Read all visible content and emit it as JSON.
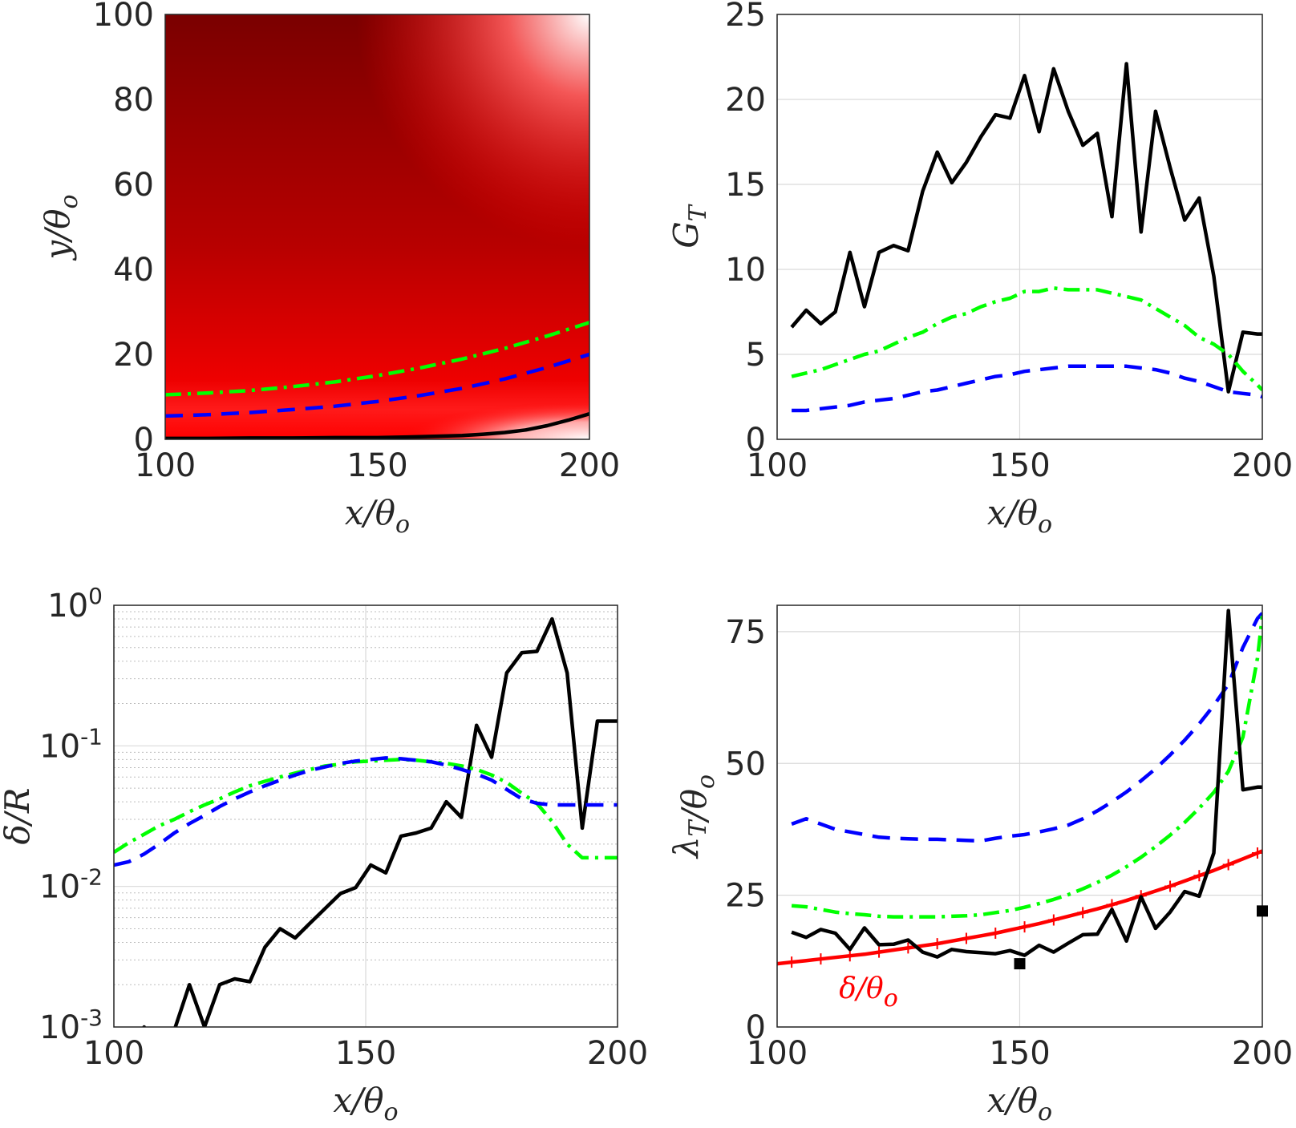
{
  "chart_data": [
    {
      "panel": "top-left",
      "type": "heatmap",
      "xlabel": "x/θo",
      "ylabel": "y/θo",
      "xlim": [
        100,
        200
      ],
      "ylim": [
        0,
        100
      ],
      "xticks": [
        100,
        150,
        200
      ],
      "yticks": [
        0,
        20,
        40,
        60,
        80,
        100
      ],
      "grid": false,
      "colormap": [
        "#ffffff",
        "#ff0000",
        "#7a0000"
      ],
      "series": [
        {
          "color": "#000000",
          "style": "solid",
          "x": [
            100,
            110,
            120,
            130,
            140,
            150,
            160,
            170,
            175,
            180,
            185,
            190,
            195,
            200
          ],
          "y": [
            0.2,
            0.2,
            0.3,
            0.3,
            0.4,
            0.4,
            0.6,
            0.9,
            1.2,
            1.6,
            2.2,
            3.2,
            4.5,
            6.0
          ]
        },
        {
          "color": "#0000ff",
          "style": "dash",
          "x": [
            100,
            110,
            120,
            130,
            140,
            150,
            160,
            170,
            180,
            190,
            200
          ],
          "y": [
            5.5,
            5.8,
            6.3,
            7.0,
            7.8,
            8.9,
            10.3,
            12.0,
            14.2,
            16.9,
            20.0
          ]
        },
        {
          "color": "#00ff00",
          "style": "dashdot",
          "x": [
            100,
            110,
            120,
            130,
            140,
            150,
            160,
            170,
            180,
            190,
            200
          ],
          "y": [
            10.5,
            10.9,
            11.5,
            12.4,
            13.5,
            15.0,
            16.8,
            18.9,
            21.4,
            24.3,
            27.5
          ]
        }
      ]
    },
    {
      "panel": "top-right",
      "type": "line",
      "xlabel": "x/θo",
      "ylabel": "GT",
      "xlim": [
        100,
        200
      ],
      "ylim": [
        0,
        25
      ],
      "xticks": [
        100,
        150,
        200
      ],
      "yticks": [
        0,
        5,
        10,
        15,
        20,
        25
      ],
      "grid": true,
      "series": [
        {
          "color": "#000000",
          "style": "solid",
          "x": [
            103,
            106,
            109,
            112,
            115,
            118,
            121,
            124,
            127,
            130,
            133,
            136,
            139,
            142,
            145,
            148,
            151,
            154,
            157,
            160,
            163,
            166,
            169,
            172,
            175,
            178,
            181,
            184,
            187,
            190,
            193,
            196,
            199,
            200
          ],
          "y": [
            6.6,
            7.6,
            6.8,
            7.5,
            11.0,
            7.8,
            11.0,
            11.4,
            11.1,
            14.6,
            16.9,
            15.1,
            16.3,
            17.8,
            19.1,
            18.9,
            21.4,
            18.1,
            21.8,
            19.3,
            17.3,
            18.0,
            13.1,
            22.1,
            12.2,
            19.3,
            16.0,
            12.9,
            14.2,
            9.6,
            2.8,
            6.3,
            6.2,
            6.2
          ]
        },
        {
          "color": "#00ff00",
          "style": "dashdot",
          "x": [
            103,
            106,
            109,
            112,
            115,
            118,
            121,
            124,
            127,
            130,
            133,
            136,
            139,
            142,
            145,
            148,
            151,
            154,
            157,
            160,
            163,
            166,
            169,
            172,
            175,
            178,
            181,
            184,
            187,
            190,
            193,
            196,
            199,
            200
          ],
          "y": [
            3.7,
            3.9,
            4.1,
            4.4,
            4.7,
            5.0,
            5.2,
            5.6,
            6.0,
            6.3,
            6.8,
            7.2,
            7.4,
            7.8,
            8.1,
            8.3,
            8.7,
            8.7,
            8.9,
            8.8,
            8.8,
            8.8,
            8.6,
            8.4,
            8.2,
            7.7,
            7.2,
            6.7,
            6.0,
            5.6,
            5.0,
            4.0,
            3.2,
            2.9
          ]
        },
        {
          "color": "#0000ff",
          "style": "dash",
          "x": [
            103,
            106,
            109,
            112,
            115,
            118,
            121,
            124,
            127,
            130,
            133,
            136,
            139,
            142,
            145,
            148,
            151,
            154,
            157,
            160,
            163,
            166,
            169,
            172,
            175,
            178,
            181,
            184,
            187,
            190,
            193,
            196,
            199,
            200
          ],
          "y": [
            1.7,
            1.7,
            1.8,
            1.9,
            2.0,
            2.2,
            2.3,
            2.4,
            2.6,
            2.8,
            2.9,
            3.1,
            3.3,
            3.5,
            3.7,
            3.8,
            4.0,
            4.1,
            4.2,
            4.3,
            4.3,
            4.3,
            4.3,
            4.3,
            4.2,
            4.1,
            3.9,
            3.6,
            3.4,
            3.1,
            2.8,
            2.7,
            2.6,
            2.5
          ]
        }
      ]
    },
    {
      "panel": "bottom-left",
      "type": "line",
      "xlabel": "x/θo",
      "ylabel": "δ/R",
      "xlim": [
        100,
        200
      ],
      "ylim": [
        0.001,
        1
      ],
      "yscale": "log",
      "xticks": [
        100,
        150,
        200
      ],
      "yticks": [
        "10-3",
        "10-2",
        "10-1",
        "100"
      ],
      "grid": true,
      "series": [
        {
          "color": "#000000",
          "style": "solid",
          "x": [
            103,
            106,
            109,
            112,
            115,
            118,
            121,
            124,
            127,
            130,
            133,
            136,
            139,
            142,
            145,
            148,
            151,
            154,
            157,
            160,
            163,
            166,
            169,
            172,
            175,
            178,
            181,
            184,
            187,
            190,
            193,
            196,
            199,
            200
          ],
          "y": [
            0.0006,
            0.001,
            0.0006,
            0.00095,
            0.002,
            0.001,
            0.002,
            0.0022,
            0.0021,
            0.0037,
            0.005,
            0.0043,
            0.0055,
            0.007,
            0.0089,
            0.0098,
            0.0142,
            0.0125,
            0.0228,
            0.024,
            0.026,
            0.04,
            0.031,
            0.14,
            0.083,
            0.33,
            0.46,
            0.47,
            0.8,
            0.33,
            0.026,
            0.15,
            0.15,
            0.15
          ]
        },
        {
          "color": "#00ff00",
          "style": "dashdot",
          "x": [
            100,
            103,
            106,
            109,
            112,
            115,
            118,
            121,
            124,
            127,
            130,
            133,
            136,
            139,
            142,
            145,
            148,
            151,
            154,
            157,
            160,
            163,
            166,
            169,
            172,
            175,
            178,
            181,
            184,
            187,
            190,
            193,
            196,
            199,
            200
          ],
          "y": [
            0.0175,
            0.0205,
            0.0235,
            0.027,
            0.03,
            0.034,
            0.038,
            0.042,
            0.047,
            0.052,
            0.056,
            0.06,
            0.064,
            0.068,
            0.072,
            0.074,
            0.077,
            0.078,
            0.079,
            0.08,
            0.079,
            0.077,
            0.075,
            0.072,
            0.068,
            0.062,
            0.055,
            0.046,
            0.039,
            0.029,
            0.02,
            0.016,
            0.016,
            0.016,
            0.016
          ]
        },
        {
          "color": "#0000ff",
          "style": "dash",
          "x": [
            100,
            103,
            106,
            109,
            112,
            115,
            118,
            121,
            124,
            127,
            130,
            133,
            136,
            139,
            142,
            145,
            148,
            151,
            154,
            157,
            160,
            163,
            166,
            169,
            172,
            175,
            178,
            181,
            184,
            187,
            190,
            193,
            196,
            199,
            200
          ],
          "y": [
            0.0142,
            0.015,
            0.017,
            0.02,
            0.024,
            0.028,
            0.032,
            0.037,
            0.042,
            0.047,
            0.052,
            0.057,
            0.062,
            0.067,
            0.071,
            0.075,
            0.078,
            0.08,
            0.082,
            0.081,
            0.079,
            0.077,
            0.073,
            0.068,
            0.063,
            0.057,
            0.049,
            0.042,
            0.039,
            0.038,
            0.038,
            0.038,
            0.038,
            0.038,
            0.038
          ]
        }
      ]
    },
    {
      "panel": "bottom-right",
      "type": "line",
      "xlabel": "x/θo",
      "ylabel": "λT/θo",
      "xlim": [
        100,
        200
      ],
      "ylim": [
        0,
        80
      ],
      "xticks": [
        100,
        150,
        200
      ],
      "yticks": [
        0,
        25,
        50,
        75
      ],
      "grid": true,
      "annotation": "δ/θo",
      "series": [
        {
          "color": "#0000ff",
          "style": "dash",
          "x": [
            103,
            106,
            109,
            112,
            115,
            118,
            121,
            124,
            127,
            130,
            133,
            136,
            139,
            142,
            145,
            148,
            151,
            154,
            157,
            160,
            163,
            166,
            169,
            172,
            175,
            178,
            181,
            184,
            187,
            190,
            193,
            196,
            199,
            200
          ],
          "y": [
            38.5,
            39.5,
            38.5,
            37.5,
            37.0,
            36.5,
            36.0,
            35.8,
            35.7,
            35.6,
            35.6,
            35.5,
            35.4,
            35.3,
            35.8,
            36.2,
            36.5,
            37.0,
            37.6,
            38.3,
            39.5,
            41.0,
            42.7,
            44.6,
            46.7,
            49.0,
            51.6,
            54.4,
            57.5,
            61.0,
            65.0,
            72.0,
            77.5,
            78.5
          ]
        },
        {
          "color": "#00ff00",
          "style": "dashdot",
          "x": [
            103,
            106,
            109,
            112,
            115,
            118,
            121,
            124,
            127,
            130,
            133,
            136,
            139,
            142,
            145,
            148,
            151,
            154,
            157,
            160,
            163,
            166,
            169,
            172,
            175,
            178,
            181,
            184,
            187,
            190,
            193,
            196,
            199,
            200
          ],
          "y": [
            23.0,
            22.8,
            22.3,
            21.8,
            21.5,
            21.3,
            21.0,
            20.9,
            20.9,
            20.9,
            20.9,
            21.0,
            21.1,
            21.3,
            21.7,
            22.1,
            22.7,
            23.4,
            24.2,
            25.1,
            26.2,
            27.4,
            28.8,
            30.4,
            32.2,
            34.2,
            36.4,
            38.8,
            41.5,
            44.5,
            48.5,
            55.0,
            70.0,
            78.0
          ]
        },
        {
          "color": "#ff0000",
          "style": "solid-plus",
          "x": [
            100,
            103,
            106,
            109,
            112,
            115,
            118,
            121,
            124,
            127,
            130,
            133,
            136,
            139,
            142,
            145,
            148,
            151,
            154,
            157,
            160,
            163,
            166,
            169,
            172,
            175,
            178,
            181,
            184,
            187,
            190,
            193,
            196,
            199,
            200
          ],
          "y": [
            12.0,
            12.3,
            12.6,
            12.9,
            13.2,
            13.5,
            13.8,
            14.2,
            14.6,
            15.0,
            15.4,
            15.8,
            16.3,
            16.8,
            17.3,
            17.8,
            18.4,
            19.0,
            19.6,
            20.3,
            21.0,
            21.7,
            22.4,
            23.2,
            24.0,
            24.9,
            25.8,
            26.7,
            27.7,
            28.7,
            29.7,
            30.8,
            31.9,
            33.0,
            33.4
          ]
        },
        {
          "color": "#000000",
          "style": "solid",
          "x": [
            103,
            106,
            109,
            112,
            115,
            118,
            121,
            124,
            127,
            130,
            133,
            136,
            139,
            142,
            145,
            148,
            151,
            154,
            157,
            160,
            163,
            166,
            169,
            172,
            175,
            178,
            181,
            184,
            187,
            190,
            193,
            196,
            199,
            200
          ],
          "y": [
            18.0,
            17.0,
            18.5,
            17.8,
            14.7,
            18.8,
            15.6,
            15.7,
            16.5,
            14.2,
            13.3,
            14.7,
            14.3,
            14.1,
            13.9,
            14.5,
            13.6,
            15.5,
            14.2,
            15.9,
            17.5,
            17.6,
            22.3,
            16.3,
            24.7,
            18.7,
            21.8,
            25.7,
            24.8,
            33.0,
            79.0,
            45.0,
            45.5,
            45.5
          ]
        },
        {
          "color": "#000000",
          "style": "markers",
          "x": [
            150,
            200
          ],
          "y": [
            12.0,
            22.0
          ]
        }
      ]
    }
  ]
}
